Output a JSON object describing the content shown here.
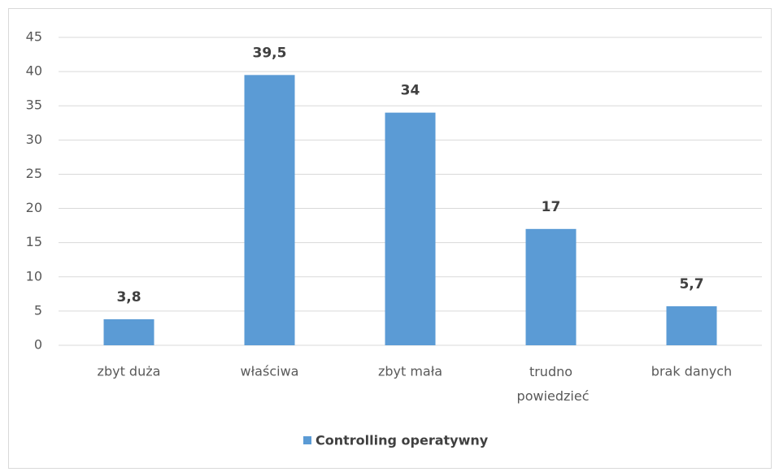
{
  "chart_data": {
    "type": "bar",
    "categories": [
      "zbyt duża",
      "właściwa",
      "zbyt mała",
      "trudno powiedzieć",
      "brak danych"
    ],
    "series": [
      {
        "name": "Controlling operatywny",
        "color": "#5b9bd5",
        "values": [
          3.8,
          39.5,
          34,
          17,
          5.7
        ],
        "value_labels": [
          "3,8",
          "39,5",
          "34",
          "17",
          "5,7"
        ]
      }
    ],
    "ylim": [
      0,
      45
    ],
    "yticks": [
      0,
      5,
      10,
      15,
      20,
      25,
      30,
      35,
      40,
      45
    ],
    "grid": true,
    "legend": "bottom"
  }
}
